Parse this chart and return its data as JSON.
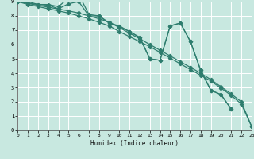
{
  "title": "",
  "xlabel": "Humidex (Indice chaleur)",
  "xlim": [
    0,
    23
  ],
  "ylim": [
    0,
    9
  ],
  "xticks": [
    0,
    1,
    2,
    3,
    4,
    5,
    6,
    7,
    8,
    9,
    10,
    11,
    12,
    13,
    14,
    15,
    16,
    17,
    18,
    19,
    20,
    21,
    22,
    23
  ],
  "yticks": [
    0,
    1,
    2,
    3,
    4,
    5,
    6,
    7,
    8,
    9
  ],
  "background_color": "#c8e8e0",
  "grid_color": "#ffffff",
  "line_color": "#2e7d6e",
  "series1_x": [
    0,
    1,
    2,
    3,
    4,
    5,
    6,
    7,
    8,
    9,
    10,
    11,
    12,
    13,
    14,
    15,
    16,
    17,
    18,
    19,
    20,
    21
  ],
  "series1_y": [
    9,
    9,
    8.8,
    8.8,
    8.65,
    9.25,
    9.5,
    8.1,
    8.0,
    7.5,
    7.25,
    6.9,
    6.5,
    5.0,
    4.9,
    7.3,
    7.5,
    6.2,
    4.2,
    2.8,
    2.5,
    1.5
  ],
  "series2_x": [
    0,
    1,
    2,
    3,
    4,
    5,
    6,
    7,
    8,
    9,
    10,
    11,
    12,
    13,
    14,
    15,
    16,
    17,
    18,
    19,
    20,
    21,
    22,
    23
  ],
  "series2_y": [
    9,
    8.87,
    8.74,
    8.61,
    8.48,
    8.35,
    8.2,
    8.0,
    7.8,
    7.57,
    7.18,
    6.79,
    6.4,
    6.0,
    5.6,
    5.2,
    4.8,
    4.4,
    4.0,
    3.55,
    3.05,
    2.55,
    2.0,
    0.3
  ],
  "series3_x": [
    0,
    1,
    2,
    3,
    4,
    5,
    6,
    7,
    8,
    9,
    10,
    11,
    12,
    13,
    14,
    15,
    16,
    17,
    18,
    19,
    20,
    21,
    22,
    23
  ],
  "series3_y": [
    9,
    8.8,
    8.65,
    8.5,
    8.35,
    8.2,
    8.0,
    7.8,
    7.55,
    7.3,
    6.9,
    6.55,
    6.2,
    5.85,
    5.45,
    5.05,
    4.65,
    4.25,
    3.85,
    3.45,
    2.95,
    2.45,
    1.85,
    0.3
  ],
  "series4_x": [
    0,
    2,
    3,
    4,
    5,
    6,
    7,
    8,
    9,
    10,
    11,
    12,
    13,
    14,
    15,
    16,
    17,
    18,
    19,
    20,
    21
  ],
  "series4_y": [
    9,
    8.8,
    8.75,
    8.5,
    8.85,
    9.0,
    8.0,
    8.0,
    7.5,
    7.3,
    6.9,
    6.5,
    5.0,
    4.9,
    7.3,
    7.5,
    6.2,
    4.2,
    2.8,
    2.5,
    1.5
  ]
}
